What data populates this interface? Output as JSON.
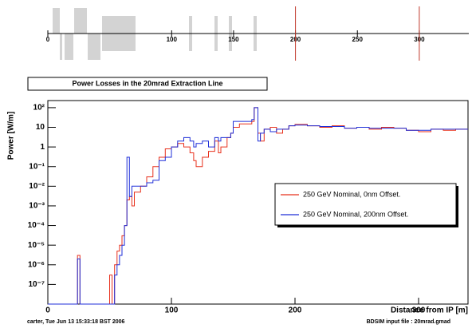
{
  "chart_data": [
    {
      "type": "beamline",
      "xlim": [
        0,
        340
      ],
      "xticks": [
        0,
        100,
        150,
        200,
        250,
        300
      ],
      "markers": [
        200,
        300
      ],
      "marker_color": "#c0392b"
    },
    {
      "type": "step",
      "title": "Power Losses in the 20mrad Extraction Line",
      "x_label": "Distance from IP [m]",
      "y_label": "Power [W/m]",
      "log_y": true,
      "xlim": [
        0,
        340
      ],
      "ylim": [
        1e-08,
        230
      ],
      "xticks": [
        0,
        100,
        200,
        300
      ],
      "yticks": [
        {
          "value": 1e-07,
          "label": "10⁻⁷"
        },
        {
          "value": 1e-06,
          "label": "10⁻⁶"
        },
        {
          "value": 1e-05,
          "label": "10⁻⁵"
        },
        {
          "value": 0.0001,
          "label": "10⁻⁴"
        },
        {
          "value": 0.001,
          "label": "10⁻³"
        },
        {
          "value": 0.01,
          "label": "10⁻²"
        },
        {
          "value": 0.1,
          "label": "10⁻¹"
        },
        1,
        10,
        {
          "value": 100,
          "label": "10²"
        }
      ],
      "legend": "middle-right",
      "x": [
        0,
        20,
        24,
        26,
        28,
        50,
        52,
        54,
        56,
        58,
        60,
        62,
        64,
        66,
        68,
        70,
        75,
        80,
        85,
        90,
        95,
        100,
        105,
        110,
        115,
        118,
        120,
        125,
        130,
        135,
        138,
        140,
        145,
        148,
        150,
        155,
        160,
        165,
        167,
        170,
        172,
        175,
        180,
        185,
        190,
        195,
        200,
        210,
        220,
        230,
        240,
        250,
        260,
        270,
        280,
        290,
        300,
        310,
        320,
        330
      ],
      "series": [
        {
          "name": "250 GeV Nominal, 0nm Offset.",
          "color": "#e8301c",
          "values": [
            1e-08,
            1e-08,
            3e-06,
            1e-08,
            1e-08,
            3e-07,
            1e-08,
            1e-06,
            5e-06,
            1e-05,
            3e-05,
            0.0001,
            0.002,
            0.003,
            0.001,
            0.005,
            0.01,
            0.03,
            0.1,
            0.3,
            0.8,
            1,
            1.5,
            1,
            0.5,
            0.2,
            0.1,
            0.3,
            0.6,
            2,
            0.5,
            1,
            3,
            5,
            10,
            15,
            15,
            20,
            100,
            5,
            2,
            8,
            10,
            5,
            8,
            12,
            14,
            12,
            10,
            12,
            9,
            10,
            8,
            10,
            9,
            7,
            6,
            8,
            7,
            8
          ]
        },
        {
          "name": "250 GeV Nominal, 200nm Offset.",
          "color": "#1f2fd8",
          "values": [
            1e-08,
            1e-08,
            2e-06,
            1e-08,
            1e-08,
            1e-08,
            1e-08,
            3e-07,
            1e-06,
            3e-06,
            1e-05,
            0.0001,
            0.3,
            0.003,
            0.01,
            0.01,
            0.01,
            0.015,
            0.02,
            0.2,
            0.3,
            1,
            2,
            3,
            2,
            1,
            1.5,
            2,
            1,
            3,
            2,
            3,
            3,
            5,
            20,
            20,
            20,
            25,
            100,
            2,
            5,
            8,
            6,
            8,
            8,
            12,
            13,
            12,
            11,
            11,
            9,
            10,
            9,
            9,
            9,
            7,
            7,
            8,
            8,
            8
          ]
        }
      ]
    },
    {
      "type": "footer",
      "left": "carter, Tue Jun 13 15:33:18 BST 2006",
      "right": "BDSIM input file : 20mrad.gmad"
    }
  ]
}
